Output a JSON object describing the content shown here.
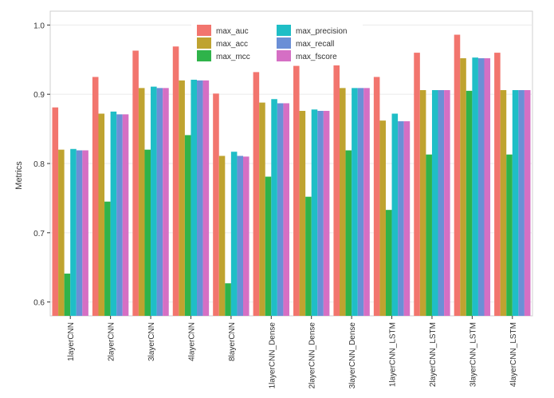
{
  "chart_data": {
    "type": "bar",
    "title": "",
    "xlabel": "",
    "ylabel": "Metrics",
    "ylim": [
      0.58,
      1.02
    ],
    "yticks": [
      0.6,
      0.7,
      0.8,
      0.9,
      1.0
    ],
    "ytick_labels": [
      "0.6",
      "0.7",
      "0.8",
      "0.9",
      "1.0"
    ],
    "grid": true,
    "legend_position": "top-center",
    "categories": [
      "1layerCNN",
      "2layerCNN",
      "3layerCNN",
      "4layerCNN",
      "8layerCNN",
      "1layerCNN_Dense",
      "2layerCNN_Dense",
      "3layerCNN_Dense",
      "1layerCNN_LSTM",
      "2layerCNN_LSTM",
      "3layerCNN_LSTM",
      "4layerCNN_LSTM"
    ],
    "series": [
      {
        "name": "max_auc",
        "color": "#F2756E",
        "values": [
          0.881,
          0.925,
          0.963,
          0.969,
          0.901,
          0.932,
          0.941,
          0.961,
          0.925,
          0.96,
          0.986,
          0.96
        ]
      },
      {
        "name": "max_acc",
        "color": "#BFA330",
        "values": [
          0.82,
          0.872,
          0.909,
          0.92,
          0.811,
          0.888,
          0.876,
          0.909,
          0.862,
          0.906,
          0.952,
          0.906
        ]
      },
      {
        "name": "max_mcc",
        "color": "#2FB34A",
        "values": [
          0.641,
          0.745,
          0.82,
          0.841,
          0.627,
          0.781,
          0.752,
          0.819,
          0.733,
          0.813,
          0.905,
          0.813
        ]
      },
      {
        "name": "max_precision",
        "color": "#1FBEC6",
        "values": [
          0.821,
          0.875,
          0.911,
          0.921,
          0.817,
          0.893,
          0.878,
          0.909,
          0.872,
          0.906,
          0.953,
          0.906
        ]
      },
      {
        "name": "max_recall",
        "color": "#6B8FD6",
        "values": [
          0.819,
          0.871,
          0.909,
          0.92,
          0.811,
          0.887,
          0.876,
          0.909,
          0.861,
          0.906,
          0.952,
          0.906
        ]
      },
      {
        "name": "max_fscore",
        "color": "#D56FC4",
        "values": [
          0.819,
          0.871,
          0.909,
          0.92,
          0.81,
          0.887,
          0.876,
          0.909,
          0.861,
          0.906,
          0.952,
          0.906
        ]
      }
    ],
    "legend_order": [
      [
        "max_auc",
        "max_precision"
      ],
      [
        "max_acc",
        "max_recall"
      ],
      [
        "max_mcc",
        "max_fscore"
      ]
    ]
  }
}
